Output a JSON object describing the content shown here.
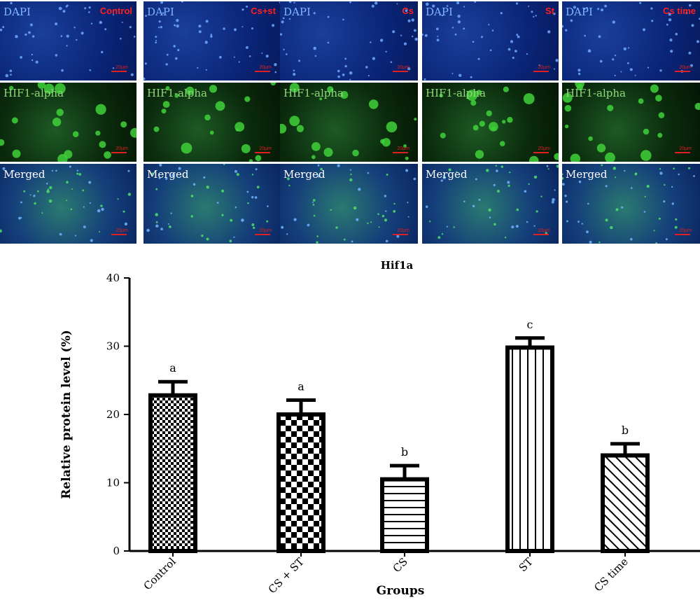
{
  "micrographs": {
    "columns": [
      {
        "condition": "Control"
      },
      {
        "condition": "Cs+st"
      },
      {
        "condition": "Cs"
      },
      {
        "condition": "St"
      },
      {
        "condition": "Cs time"
      }
    ],
    "rows": [
      {
        "label": "DAPI",
        "label_color": "#7fb7ff"
      },
      {
        "label": "HIF1-alpha",
        "label_color": "#8fd97a"
      },
      {
        "label": "Merged",
        "label_color": "#ffffff"
      }
    ],
    "scale_text": "20µm",
    "condition_color": "#ff2020",
    "scale_color": "#e02020"
  },
  "chart_data": {
    "type": "bar",
    "title": "Hif1a",
    "xlabel": "Groups",
    "ylabel": "Relative protein level (%)",
    "ylim": [
      0,
      40
    ],
    "yticks": [
      0,
      10,
      20,
      30,
      40
    ],
    "categories": [
      "Control",
      "CS + ST",
      "CS",
      "ST",
      "CS time"
    ],
    "values": [
      22.8,
      20.0,
      10.5,
      29.8,
      14.0
    ],
    "errors": [
      2.0,
      2.1,
      2.0,
      1.4,
      1.7
    ],
    "letters": [
      "a",
      "a",
      "b",
      "c",
      "b"
    ],
    "patterns": [
      "checker-small",
      "checker-large",
      "horizontal",
      "vertical",
      "diagonal"
    ],
    "bar_color": "#000000"
  }
}
